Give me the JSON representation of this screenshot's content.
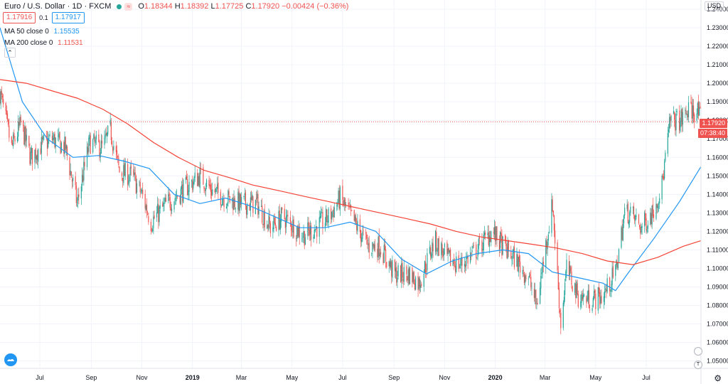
{
  "header": {
    "title": "Euro / U.S. Dollar · 1D · FXCM",
    "ohlc": [
      {
        "k": "O",
        "v": "1.18344"
      },
      {
        "k": "H",
        "v": "1.18392"
      },
      {
        "k": "L",
        "v": "1.17725"
      },
      {
        "k": "C",
        "v": "1.17920"
      },
      {
        "k": "",
        "v": "−0.00424 (−0.36%)"
      }
    ],
    "sell_price": "1.17916",
    "spread": "0.1",
    "buy_price": "1.17917",
    "ma50_label": "MA 50 close 0",
    "ma50_value": "1.15535",
    "ma200_label": "MA 200 close 0",
    "ma200_value": "1.11531",
    "currency": "USD",
    "last_price_tag": "1.17920",
    "countdown_tag": "07:38:40",
    "collapse_glyph": "⌃",
    "settings_glyph": "⚙",
    "circle_labels": [
      "",
      "T"
    ]
  },
  "colors": {
    "up": "#26a69a",
    "down": "#ef5350",
    "ma50": "#2196f3",
    "ma200": "#f44336",
    "grid": "#f0f3fa"
  },
  "chart_data": {
    "type": "candlestick",
    "title": "Euro / U.S. Dollar · 1D · FXCM",
    "y_axis": {
      "side": "right",
      "ticks": [
        "1.24000",
        "1.23000",
        "1.22000",
        "1.21000",
        "1.20000",
        "1.19000",
        "1.18000",
        "1.17000",
        "1.16000",
        "1.15000",
        "1.14000",
        "1.13000",
        "1.12000",
        "1.11000",
        "1.10000",
        "1.09000",
        "1.08000",
        "1.07000",
        "1.06000",
        "1.05000"
      ],
      "range": [
        1.046,
        1.245
      ]
    },
    "x_axis": {
      "ticks": [
        {
          "label": "Jul",
          "date": "2018-07-01",
          "bold": false
        },
        {
          "label": "Sep",
          "date": "2018-09-01",
          "bold": false
        },
        {
          "label": "Nov",
          "date": "2018-11-01",
          "bold": false
        },
        {
          "label": "2019",
          "date": "2019-01-01",
          "bold": true
        },
        {
          "label": "Mar",
          "date": "2019-03-01",
          "bold": false
        },
        {
          "label": "May",
          "date": "2019-05-01",
          "bold": false
        },
        {
          "label": "Jul",
          "date": "2019-07-01",
          "bold": false
        },
        {
          "label": "Sep",
          "date": "2019-09-01",
          "bold": false
        },
        {
          "label": "Nov",
          "date": "2019-11-01",
          "bold": false
        },
        {
          "label": "2020",
          "date": "2020-01-01",
          "bold": true
        },
        {
          "label": "Mar",
          "date": "2020-03-01",
          "bold": false
        },
        {
          "label": "May",
          "date": "2020-05-01",
          "bold": false
        },
        {
          "label": "Jul",
          "date": "2020-07-01",
          "bold": false
        }
      ],
      "range": [
        "2018-05-14",
        "2020-09-05"
      ]
    },
    "last_price": 1.1792,
    "close_path": [
      [
        "2018-05-14",
        1.195
      ],
      [
        "2018-05-28",
        1.165
      ],
      [
        "2018-06-08",
        1.178
      ],
      [
        "2018-06-20",
        1.16
      ],
      [
        "2018-07-02",
        1.166
      ],
      [
        "2018-07-16",
        1.17
      ],
      [
        "2018-08-01",
        1.165
      ],
      [
        "2018-08-15",
        1.135
      ],
      [
        "2018-08-30",
        1.168
      ],
      [
        "2018-09-15",
        1.165
      ],
      [
        "2018-09-24",
        1.175
      ],
      [
        "2018-10-05",
        1.152
      ],
      [
        "2018-10-20",
        1.15
      ],
      [
        "2018-11-01",
        1.14
      ],
      [
        "2018-11-12",
        1.125
      ],
      [
        "2018-12-01",
        1.135
      ],
      [
        "2018-12-20",
        1.142
      ],
      [
        "2019-01-10",
        1.15
      ],
      [
        "2019-01-25",
        1.142
      ],
      [
        "2019-02-10",
        1.138
      ],
      [
        "2019-02-28",
        1.135
      ],
      [
        "2019-03-20",
        1.135
      ],
      [
        "2019-04-05",
        1.122
      ],
      [
        "2019-04-20",
        1.128
      ],
      [
        "2019-05-15",
        1.118
      ],
      [
        "2019-05-30",
        1.122
      ],
      [
        "2019-06-15",
        1.128
      ],
      [
        "2019-06-28",
        1.138
      ],
      [
        "2019-07-15",
        1.125
      ],
      [
        "2019-08-01",
        1.112
      ],
      [
        "2019-08-15",
        1.112
      ],
      [
        "2019-09-01",
        1.097
      ],
      [
        "2019-09-20",
        1.097
      ],
      [
        "2019-10-01",
        1.092
      ],
      [
        "2019-10-20",
        1.115
      ],
      [
        "2019-11-05",
        1.105
      ],
      [
        "2019-11-20",
        1.102
      ],
      [
        "2019-12-10",
        1.11
      ],
      [
        "2019-12-28",
        1.12
      ],
      [
        "2020-01-10",
        1.112
      ],
      [
        "2020-01-25",
        1.105
      ],
      [
        "2020-02-10",
        1.095
      ],
      [
        "2020-02-20",
        1.08
      ],
      [
        "2020-03-01",
        1.11
      ],
      [
        "2020-03-10",
        1.135
      ],
      [
        "2020-03-20",
        1.07
      ],
      [
        "2020-03-27",
        1.1
      ],
      [
        "2020-04-10",
        1.085
      ],
      [
        "2020-04-25",
        1.083
      ],
      [
        "2020-05-10",
        1.085
      ],
      [
        "2020-05-25",
        1.098
      ],
      [
        "2020-06-05",
        1.13
      ],
      [
        "2020-06-12",
        1.13
      ],
      [
        "2020-06-25",
        1.122
      ],
      [
        "2020-07-08",
        1.13
      ],
      [
        "2020-07-20",
        1.145
      ],
      [
        "2020-07-30",
        1.18
      ],
      [
        "2020-08-12",
        1.18
      ],
      [
        "2020-08-20",
        1.185
      ],
      [
        "2020-09-01",
        1.185
      ],
      [
        "2020-09-05",
        1.179
      ]
    ],
    "series": [
      {
        "name": "MA 50 close 0",
        "color": "#2196f3",
        "points": [
          [
            "2018-05-14",
            1.23
          ],
          [
            "2018-06-10",
            1.19
          ],
          [
            "2018-07-10",
            1.17
          ],
          [
            "2018-08-10",
            1.16
          ],
          [
            "2018-09-10",
            1.161
          ],
          [
            "2018-10-10",
            1.158
          ],
          [
            "2018-11-10",
            1.154
          ],
          [
            "2018-12-10",
            1.14
          ],
          [
            "2019-01-10",
            1.135
          ],
          [
            "2019-02-10",
            1.138
          ],
          [
            "2019-03-10",
            1.134
          ],
          [
            "2019-04-10",
            1.128
          ],
          [
            "2019-05-10",
            1.122
          ],
          [
            "2019-06-10",
            1.122
          ],
          [
            "2019-07-10",
            1.125
          ],
          [
            "2019-08-10",
            1.12
          ],
          [
            "2019-09-10",
            1.105
          ],
          [
            "2019-10-10",
            1.097
          ],
          [
            "2019-11-10",
            1.104
          ],
          [
            "2019-12-10",
            1.108
          ],
          [
            "2020-01-10",
            1.11
          ],
          [
            "2020-02-10",
            1.108
          ],
          [
            "2020-03-10",
            1.098
          ],
          [
            "2020-04-10",
            1.095
          ],
          [
            "2020-05-10",
            1.092
          ],
          [
            "2020-05-25",
            1.088
          ],
          [
            "2020-06-10",
            1.098
          ],
          [
            "2020-07-10",
            1.116
          ],
          [
            "2020-08-10",
            1.136
          ],
          [
            "2020-09-05",
            1.155
          ]
        ]
      },
      {
        "name": "MA 200 close 0",
        "color": "#f44336",
        "points": [
          [
            "2018-05-14",
            1.202
          ],
          [
            "2018-06-15",
            1.2
          ],
          [
            "2018-07-15",
            1.196
          ],
          [
            "2018-08-15",
            1.192
          ],
          [
            "2018-09-15",
            1.186
          ],
          [
            "2018-10-15",
            1.178
          ],
          [
            "2018-11-15",
            1.168
          ],
          [
            "2018-12-15",
            1.16
          ],
          [
            "2019-01-15",
            1.153
          ],
          [
            "2019-02-15",
            1.149
          ],
          [
            "2019-03-15",
            1.145
          ],
          [
            "2019-04-15",
            1.142
          ],
          [
            "2019-05-15",
            1.139
          ],
          [
            "2019-06-15",
            1.136
          ],
          [
            "2019-07-15",
            1.133
          ],
          [
            "2019-08-15",
            1.13
          ],
          [
            "2019-09-15",
            1.127
          ],
          [
            "2019-10-15",
            1.124
          ],
          [
            "2019-11-15",
            1.12
          ],
          [
            "2019-12-15",
            1.117
          ],
          [
            "2020-01-15",
            1.115
          ],
          [
            "2020-02-15",
            1.113
          ],
          [
            "2020-03-15",
            1.111
          ],
          [
            "2020-04-15",
            1.108
          ],
          [
            "2020-05-15",
            1.104
          ],
          [
            "2020-06-15",
            1.102
          ],
          [
            "2020-07-15",
            1.106
          ],
          [
            "2020-08-15",
            1.112
          ],
          [
            "2020-09-05",
            1.115
          ]
        ]
      }
    ]
  }
}
